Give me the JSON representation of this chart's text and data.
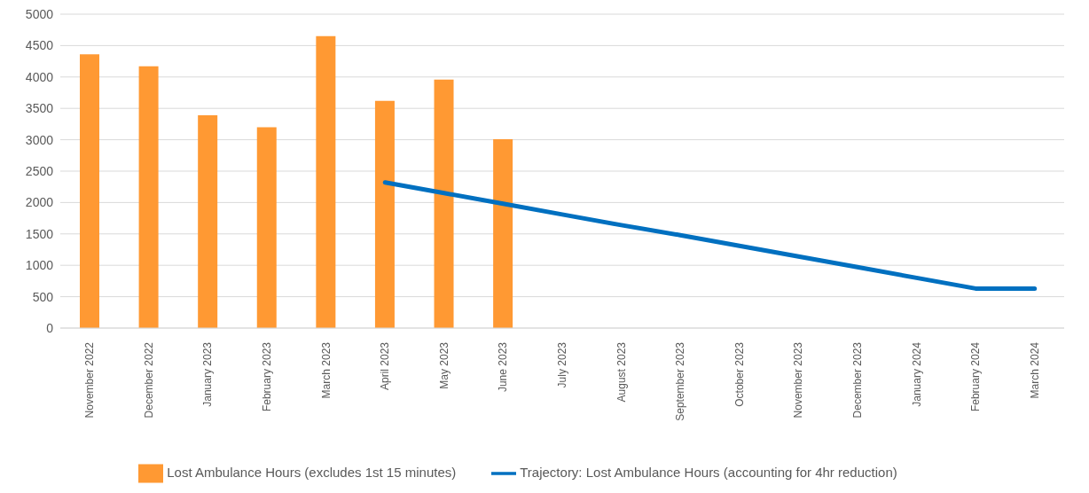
{
  "chart_data": {
    "type": "bar",
    "categories": [
      "November 2022",
      "December 2022",
      "January 2023",
      "February 2023",
      "March 2023",
      "April 2023",
      "May 2023",
      "June 2023",
      "July 2023",
      "August 2023",
      "September 2023",
      "October 2023",
      "November 2023",
      "December 2023",
      "January 2024",
      "February 2024",
      "March 2024"
    ],
    "series": [
      {
        "name": "Lost Ambulance Hours (excludes 1st 15 minutes)",
        "color": "#ff9933",
        "values": [
          4360,
          4170,
          3390,
          3200,
          4650,
          3620,
          3960,
          3010,
          null,
          null,
          null,
          null,
          null,
          null,
          null,
          null,
          null
        ]
      },
      {
        "name": "Trajectory: Lost Ambulance Hours (accounting for 4hr reduction)",
        "type": "line",
        "color": "#0070c0",
        "values": [
          null,
          null,
          null,
          null,
          null,
          2320,
          2150,
          1980,
          1810,
          1640,
          1480,
          1310,
          1140,
          970,
          800,
          630,
          630
        ]
      }
    ],
    "ylim": [
      0,
      5000
    ],
    "yticks": [
      0,
      500,
      1000,
      1500,
      2000,
      2500,
      3000,
      3500,
      4000,
      4500,
      5000
    ],
    "grid": "y",
    "legend": "bottom",
    "marker": "none",
    "line_style": "solid"
  }
}
